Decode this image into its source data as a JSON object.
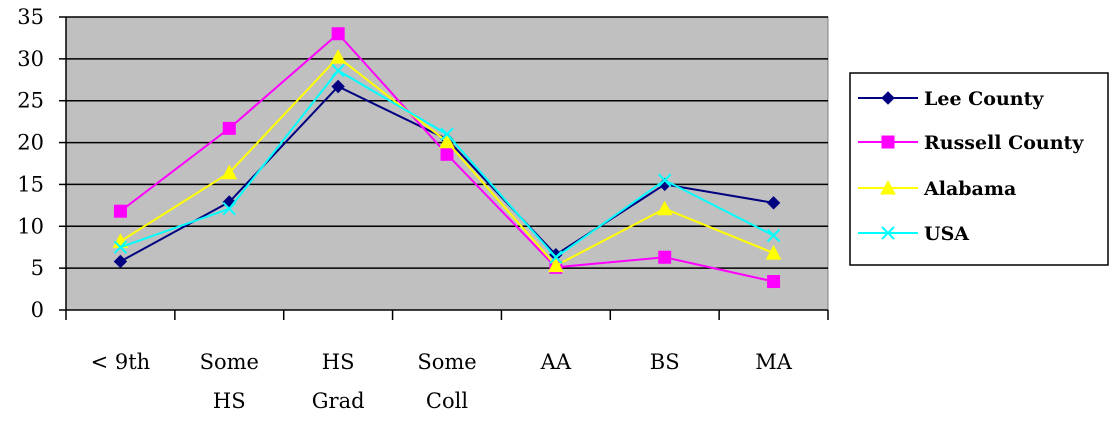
{
  "chart_data": {
    "type": "line",
    "title": "",
    "xlabel": "",
    "ylabel": "",
    "categories": [
      [
        "< 9th"
      ],
      [
        "Some",
        "HS"
      ],
      [
        "HS",
        "Grad"
      ],
      [
        "Some",
        "Coll"
      ],
      [
        "AA"
      ],
      [
        "BS"
      ],
      [
        "MA"
      ]
    ],
    "ylim": [
      0,
      35
    ],
    "yticks": [
      0,
      5,
      10,
      15,
      20,
      25,
      30,
      35
    ],
    "grid": true,
    "legend_position": "right",
    "plot_background": "#c0c0c0",
    "series": [
      {
        "name": "Lee County",
        "color": "#000080",
        "marker": "diamond",
        "values": [
          5.8,
          12.9,
          26.7,
          20.4,
          6.6,
          15.0,
          12.8
        ]
      },
      {
        "name": "Russell County",
        "color": "#ff00ff",
        "marker": "square",
        "values": [
          11.8,
          21.7,
          33.0,
          18.6,
          5.1,
          6.3,
          3.4
        ]
      },
      {
        "name": "Alabama",
        "color": "#ffff00",
        "marker": "triangle",
        "values": [
          8.2,
          16.4,
          30.2,
          20.1,
          5.3,
          12.1,
          6.8
        ]
      },
      {
        "name": "USA",
        "color": "#00ffff",
        "marker": "x",
        "values": [
          7.5,
          12.1,
          28.6,
          21.0,
          6.3,
          15.5,
          8.9
        ]
      }
    ]
  }
}
